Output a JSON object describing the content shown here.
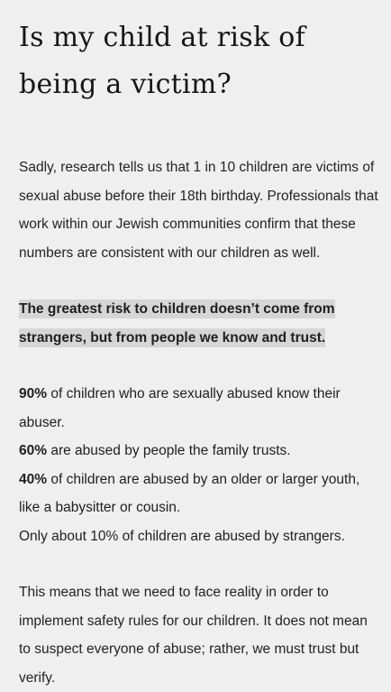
{
  "heading": "Is my child at risk of being a victim?",
  "intro": "Sadly, research tells us that 1 in 10 children are victims of sexual abuse before their 18th birthday. Professionals that work within our Jewish communities confirm that these numbers are consistent with our children as well.",
  "callout": "The greatest risk to children doesn’t come from strangers, but from people we know and trust.",
  "stats": [
    {
      "value": "90%",
      "text": " of children who are sexually abused know their abuser."
    },
    {
      "value": "60%",
      "text": " are abused by people the family trusts."
    },
    {
      "value": "40%",
      "text": " of children are abused by an older or larger youth, like a babysitter or cousin."
    }
  ],
  "strangers_line": "Only about 10% of children are abused by strangers.",
  "closing": "This means that we need to face reality in order to implement safety rules for our children. It does not mean to suspect everyone of abuse; rather, we must trust but verify."
}
